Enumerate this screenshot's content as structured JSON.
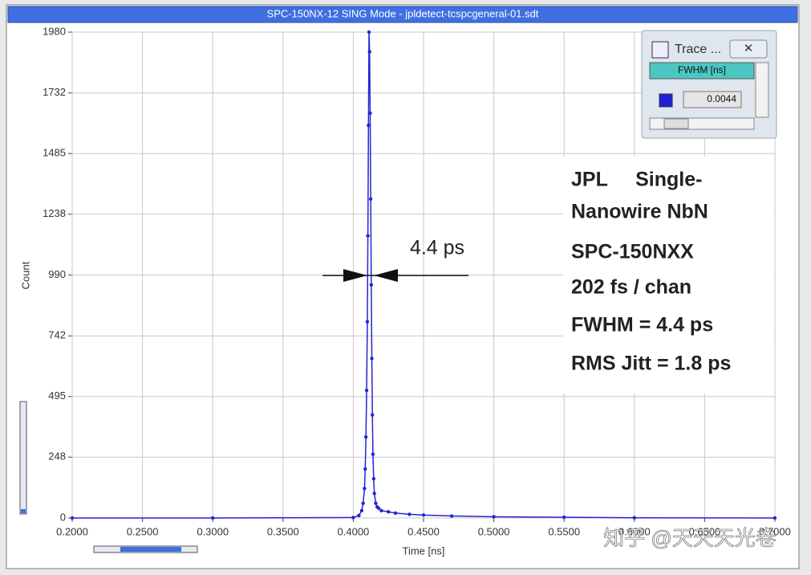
{
  "window": {
    "title": "SPC-150NX-12  SING Mode - jpldetect-tcspcgeneral-01.sdt"
  },
  "chart_data": {
    "type": "line",
    "x_label": "Time [ns]",
    "y_label": "Count",
    "xlim": [
      0.2,
      0.7
    ],
    "ylim": [
      0,
      1980
    ],
    "xticks": [
      {
        "value": 0.2,
        "label": "0.2000"
      },
      {
        "value": 0.25,
        "label": "0.2500"
      },
      {
        "value": 0.3,
        "label": "0.3000"
      },
      {
        "value": 0.35,
        "label": "0.3500"
      },
      {
        "value": 0.4,
        "label": "0.4000"
      },
      {
        "value": 0.45,
        "label": "0.4500"
      },
      {
        "value": 0.5,
        "label": "0.5000"
      },
      {
        "value": 0.55,
        "label": "0.5500"
      },
      {
        "value": 0.6,
        "label": "0.6000"
      },
      {
        "value": 0.65,
        "label": "0.6500"
      },
      {
        "value": 0.7,
        "label": "0.7000"
      }
    ],
    "yticks": [
      0,
      248,
      495,
      742,
      990,
      1238,
      1485,
      1732,
      1980
    ],
    "grid": true,
    "series": [
      {
        "name": "Trace",
        "color": "#2424d4",
        "x": [
          0.2,
          0.3,
          0.4,
          0.404,
          0.406,
          0.407,
          0.408,
          0.4085,
          0.409,
          0.4095,
          0.41,
          0.4104,
          0.4108,
          0.4112,
          0.4116,
          0.412,
          0.4124,
          0.4128,
          0.4132,
          0.4136,
          0.414,
          0.4145,
          0.415,
          0.416,
          0.417,
          0.418,
          0.42,
          0.425,
          0.43,
          0.44,
          0.45,
          0.47,
          0.5,
          0.55,
          0.6,
          0.7
        ],
        "values": [
          0,
          0,
          2,
          10,
          30,
          60,
          120,
          200,
          330,
          520,
          800,
          1150,
          1600,
          1980,
          1900,
          1650,
          1300,
          950,
          650,
          420,
          260,
          160,
          100,
          60,
          45,
          40,
          30,
          25,
          20,
          15,
          12,
          8,
          5,
          3,
          1,
          0
        ]
      }
    ],
    "annotations": {
      "fwhm_arrow": "4.4 ps",
      "info": [
        "JPL     Single-",
        "Nanowire NbN",
        "SPC-150NXX",
        "202 fs / chan",
        "FWHM = 4.4 ps",
        "RMS Jitt = 1.8 ps"
      ]
    }
  },
  "trace_panel": {
    "title": "Trace ...",
    "column": "FWHM [ns]",
    "value": "0.0044"
  },
  "watermark": "知乎 @天天天光卷"
}
